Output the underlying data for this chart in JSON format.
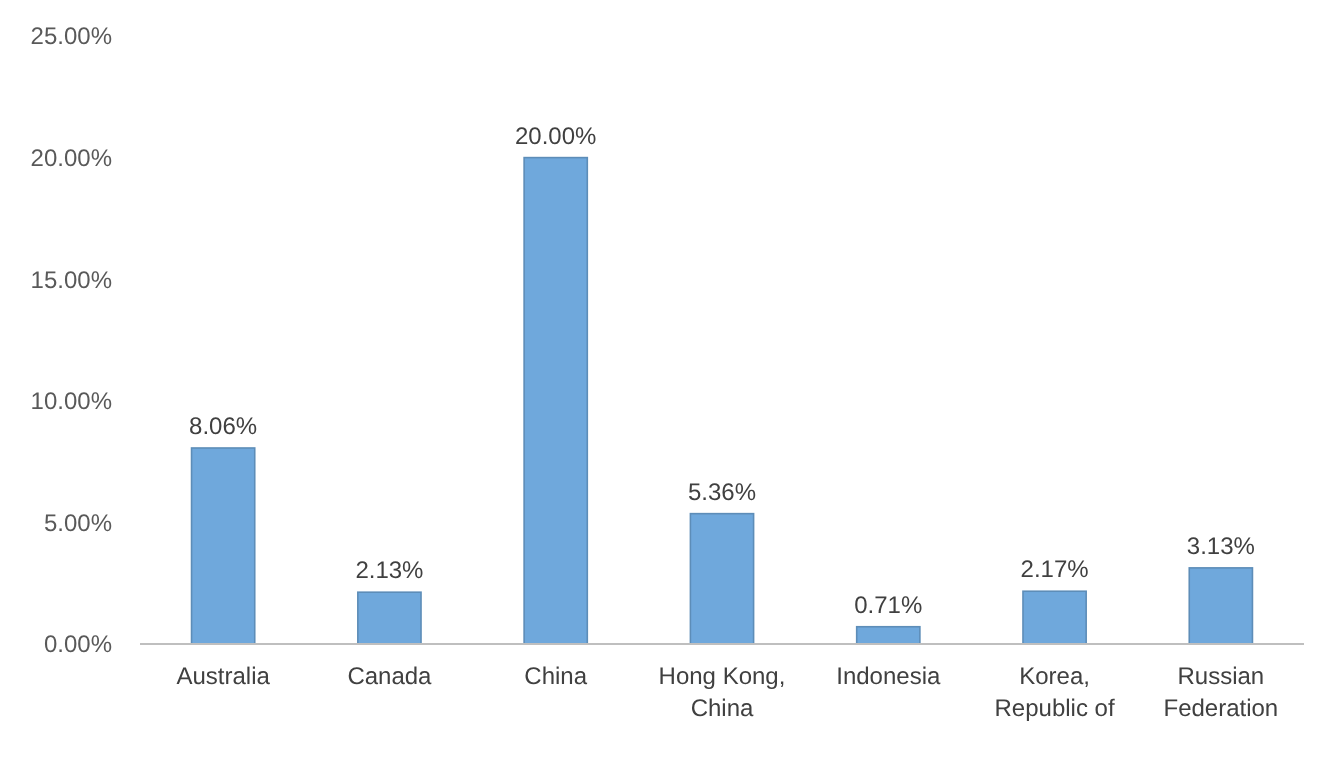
{
  "chart_data": {
    "type": "bar",
    "categories": [
      "Australia",
      "Canada",
      "China",
      "Hong Kong, China",
      "Indonesia",
      "Korea, Republic of",
      "Russian Federation"
    ],
    "values": [
      8.06,
      2.13,
      20.0,
      5.36,
      0.71,
      2.17,
      3.13
    ],
    "value_labels": [
      "8.06%",
      "2.13%",
      "20.00%",
      "5.36%",
      "0.71%",
      "2.17%",
      "3.13%"
    ],
    "color": "#6fa8dc",
    "ylim": [
      0,
      25
    ],
    "yticks": [
      {
        "value": 0,
        "label": "0.00%"
      },
      {
        "value": 5,
        "label": "5.00%"
      },
      {
        "value": 10,
        "label": "10.00%"
      },
      {
        "value": 15,
        "label": "15.00%"
      },
      {
        "value": 20,
        "label": "20.00%"
      },
      {
        "value": 25,
        "label": "25.00%"
      }
    ],
    "grid": false
  }
}
